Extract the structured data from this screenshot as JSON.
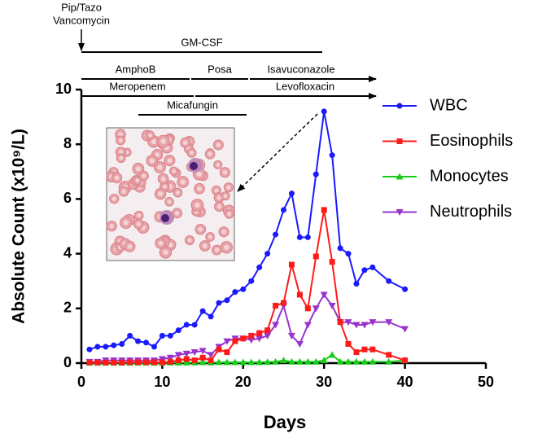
{
  "chart_data": {
    "type": "line",
    "ylabel": "Absolute Count (x10⁹/L)",
    "xlabel": "Days",
    "x": [
      1,
      2,
      3,
      4,
      5,
      6,
      7,
      8,
      9,
      10,
      11,
      12,
      13,
      14,
      15,
      16,
      17,
      18,
      19,
      20,
      21,
      22,
      23,
      24,
      25,
      26,
      27,
      28,
      29,
      30,
      31,
      32,
      33,
      34,
      35,
      36,
      38,
      40
    ],
    "xlim": [
      0,
      50
    ],
    "xticks": [
      0,
      10,
      20,
      30,
      40,
      50
    ],
    "ylim": [
      0,
      10
    ],
    "yticks": [
      0,
      2,
      4,
      6,
      8,
      10
    ],
    "series": [
      {
        "name": "WBC",
        "color": "#1a1aff",
        "marker": "circle",
        "values": [
          0.5,
          0.6,
          0.6,
          0.65,
          0.7,
          1.0,
          0.8,
          0.75,
          0.6,
          1.0,
          1.0,
          1.2,
          1.4,
          1.4,
          1.9,
          1.7,
          2.2,
          2.3,
          2.6,
          2.7,
          3.0,
          3.5,
          4.0,
          4.7,
          5.6,
          6.2,
          4.6,
          4.6,
          6.9,
          9.2,
          7.6,
          4.2,
          4.0,
          2.9,
          3.4,
          3.5,
          3.0,
          2.7
        ]
      },
      {
        "name": "Eosinophils",
        "color": "#ff1a1a",
        "marker": "square",
        "values": [
          0.02,
          0.02,
          0.02,
          0.02,
          0.02,
          0.03,
          0.03,
          0.03,
          0.03,
          0.03,
          0.05,
          0.1,
          0.15,
          0.1,
          0.2,
          0.1,
          0.5,
          0.4,
          0.8,
          0.9,
          1.0,
          1.1,
          1.2,
          2.1,
          2.2,
          3.6,
          2.5,
          2.0,
          3.9,
          5.6,
          3.7,
          1.5,
          0.7,
          0.4,
          0.5,
          0.5,
          0.3,
          0.1
        ]
      },
      {
        "name": "Monocytes",
        "color": "#1acc1a",
        "marker": "triangle-up",
        "values": [
          0.01,
          0.01,
          0.01,
          0.01,
          0.01,
          0.01,
          0.01,
          0.01,
          0.01,
          0.01,
          0.02,
          0.02,
          0.02,
          0.02,
          0.03,
          0.02,
          0.03,
          0.03,
          0.03,
          0.03,
          0.03,
          0.03,
          0.04,
          0.05,
          0.1,
          0.05,
          0.05,
          0.05,
          0.05,
          0.1,
          0.3,
          0.05,
          0.05,
          0.05,
          0.05,
          0.05,
          0.05,
          0.1
        ]
      },
      {
        "name": "Neutrophils",
        "color": "#9933cc",
        "marker": "triangle-down",
        "values": [
          0.05,
          0.05,
          0.1,
          0.1,
          0.1,
          0.1,
          0.1,
          0.1,
          0.1,
          0.15,
          0.2,
          0.3,
          0.35,
          0.4,
          0.45,
          0.3,
          0.6,
          0.8,
          0.9,
          0.9,
          0.85,
          0.9,
          1.0,
          1.4,
          2.1,
          1.0,
          0.7,
          1.4,
          2.0,
          2.5,
          2.1,
          1.5,
          1.5,
          1.4,
          1.4,
          1.5,
          1.5,
          1.25
        ]
      }
    ],
    "treatments": [
      "Pip/Tazo",
      "Vancomycin",
      "GM-CSF",
      "AmphoB",
      "Posa",
      "Isavuconazole",
      "Meropenem",
      "Levofloxacin",
      "Micafungin"
    ]
  }
}
